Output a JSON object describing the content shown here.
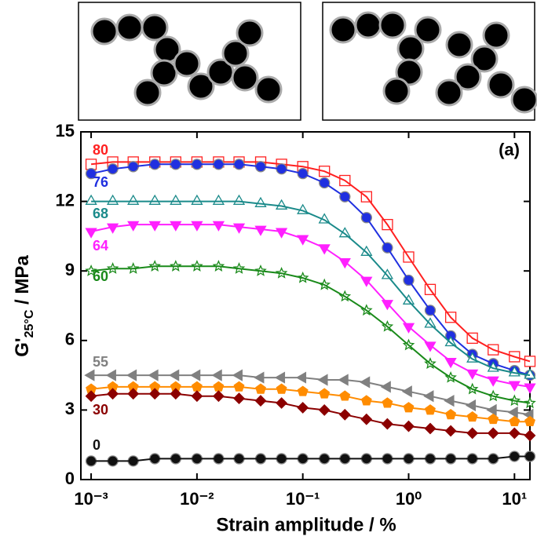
{
  "chart_data": {
    "type": "line",
    "x_label": "Strain amplitude / %",
    "y_label": [
      "G'",
      "25°C",
      " / MPa"
    ],
    "annotation": "(a)",
    "log_x": true,
    "xlim": [
      0.0008,
      14
    ],
    "ylim": [
      0,
      15
    ],
    "xticks": [
      {
        "value": 0.001,
        "label": "10⁻³"
      },
      {
        "value": 0.01,
        "label": "10⁻²"
      },
      {
        "value": 0.1,
        "label": "10⁻¹"
      },
      {
        "value": 1,
        "label": "10⁰"
      },
      {
        "value": 10,
        "label": "10¹"
      }
    ],
    "yticks": [
      0,
      3,
      6,
      9,
      12,
      15
    ],
    "x": [
      0.001,
      0.0016,
      0.0025,
      0.004,
      0.0063,
      0.01,
      0.016,
      0.025,
      0.04,
      0.063,
      0.1,
      0.16,
      0.25,
      0.4,
      0.63,
      1,
      1.6,
      2.5,
      4,
      6.3,
      10,
      14
    ],
    "series": [
      {
        "name": "80",
        "color": "#ff2020",
        "marker": "square",
        "filled": false,
        "values": [
          13.6,
          13.7,
          13.7,
          13.7,
          13.7,
          13.7,
          13.7,
          13.7,
          13.7,
          13.6,
          13.5,
          13.3,
          12.9,
          12.2,
          11.0,
          9.6,
          8.2,
          7.0,
          6.1,
          5.6,
          5.3,
          5.1
        ]
      },
      {
        "name": "76",
        "color": "#2030e0",
        "marker": "circle",
        "filled": true,
        "values": [
          13.2,
          13.4,
          13.5,
          13.6,
          13.6,
          13.6,
          13.6,
          13.6,
          13.5,
          13.4,
          13.2,
          12.8,
          12.2,
          11.3,
          10.0,
          8.6,
          7.3,
          6.2,
          5.4,
          5.0,
          4.7,
          4.5
        ]
      },
      {
        "name": "68",
        "color": "#1a8a8a",
        "marker": "triangle",
        "filled": false,
        "values": [
          12.0,
          12.0,
          12.0,
          12.0,
          12.0,
          12.0,
          12.0,
          12.0,
          11.9,
          11.8,
          11.6,
          11.2,
          10.6,
          9.8,
          8.8,
          7.7,
          6.7,
          5.9,
          5.2,
          4.8,
          4.6,
          4.5
        ]
      },
      {
        "name": "64",
        "color": "#ff20ff",
        "marker": "triangle-down",
        "filled": true,
        "values": [
          10.7,
          10.9,
          11.0,
          11.0,
          11.0,
          11.0,
          11.0,
          10.9,
          10.8,
          10.7,
          10.4,
          10.0,
          9.4,
          8.6,
          7.6,
          6.6,
          5.8,
          5.1,
          4.6,
          4.3,
          4.1,
          4.0
        ]
      },
      {
        "name": "60",
        "color": "#1a8a1a",
        "marker": "star",
        "filled": false,
        "values": [
          9.0,
          9.1,
          9.1,
          9.2,
          9.2,
          9.2,
          9.2,
          9.1,
          9.0,
          8.9,
          8.7,
          8.4,
          7.9,
          7.3,
          6.6,
          5.8,
          5.0,
          4.4,
          3.9,
          3.6,
          3.4,
          3.3
        ]
      },
      {
        "name": "55",
        "color": "#808080",
        "marker": "triangle-left",
        "filled": true,
        "values": [
          4.5,
          4.5,
          4.5,
          4.5,
          4.5,
          4.5,
          4.5,
          4.5,
          4.4,
          4.4,
          4.4,
          4.3,
          4.3,
          4.2,
          4.0,
          3.8,
          3.6,
          3.4,
          3.2,
          3.0,
          2.9,
          2.8
        ]
      },
      {
        "color": "#ff8c00",
        "marker": "pentagon",
        "filled": true,
        "values": [
          3.9,
          4.0,
          4.0,
          4.0,
          4.0,
          4.0,
          4.0,
          4.0,
          3.9,
          3.9,
          3.8,
          3.7,
          3.6,
          3.4,
          3.3,
          3.1,
          3.0,
          2.8,
          2.7,
          2.6,
          2.5,
          2.5
        ]
      },
      {
        "name": "30",
        "color": "#8b0000",
        "marker": "diamond",
        "filled": true,
        "values": [
          3.6,
          3.7,
          3.7,
          3.7,
          3.7,
          3.6,
          3.6,
          3.5,
          3.4,
          3.3,
          3.1,
          3.0,
          2.8,
          2.6,
          2.4,
          2.3,
          2.2,
          2.1,
          2.0,
          2.0,
          2.0,
          1.9
        ]
      },
      {
        "name": "0",
        "color": "#111111",
        "marker": "circle",
        "filled": true,
        "values": [
          0.8,
          0.8,
          0.8,
          0.9,
          0.9,
          0.9,
          0.9,
          0.9,
          0.9,
          0.9,
          0.9,
          0.9,
          0.9,
          0.9,
          0.9,
          0.9,
          0.9,
          0.9,
          0.9,
          0.9,
          1.0,
          1.0
        ]
      }
    ]
  }
}
